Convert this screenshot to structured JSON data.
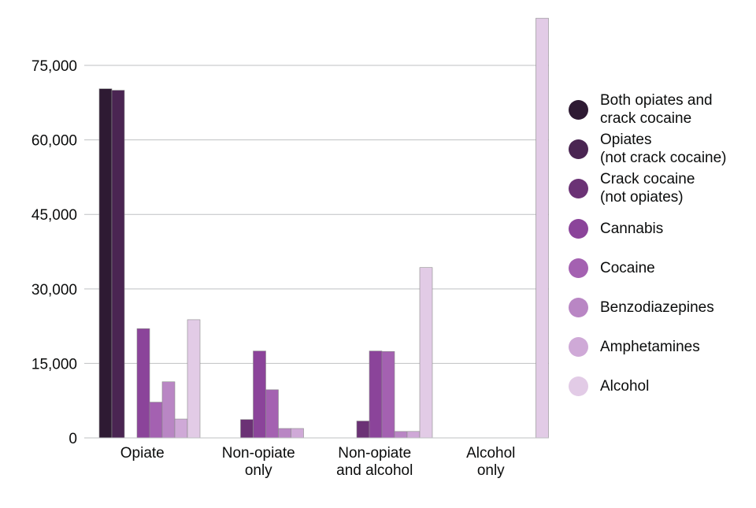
{
  "chart_data": {
    "type": "bar",
    "categories": [
      "Opiate",
      "Non-opiate\nonly",
      "Non-opiate\nand alcohol",
      "Alcohol\nonly"
    ],
    "ylim": [
      0,
      85000
    ],
    "yticks": [
      0,
      15000,
      30000,
      45000,
      60000,
      75000
    ],
    "ytick_labels": [
      "0",
      "15,000",
      "30,000",
      "45,000",
      "60,000",
      "75,000"
    ],
    "grid": true,
    "legend_position": "right",
    "series": [
      {
        "name": "Both opiates and\ncrack cocaine",
        "color": "#2e1a33",
        "values": [
          70300,
          0,
          0,
          0
        ]
      },
      {
        "name": "Opiates\n(not crack cocaine)",
        "color": "#4a2552",
        "values": [
          70000,
          0,
          0,
          0
        ]
      },
      {
        "name": "Crack cocaine\n(not opiates)",
        "color": "#6b3275",
        "values": [
          0,
          3700,
          3400,
          0
        ]
      },
      {
        "name": "Cannabis",
        "color": "#8b449a",
        "values": [
          22000,
          17500,
          17500,
          0
        ]
      },
      {
        "name": "Cocaine",
        "color": "#a461b1",
        "values": [
          7200,
          9700,
          17400,
          0
        ]
      },
      {
        "name": "Benzodiazepines",
        "color": "#b986c4",
        "values": [
          11300,
          1900,
          1300,
          0
        ]
      },
      {
        "name": "Amphetamines",
        "color": "#cfa9d7",
        "values": [
          3800,
          1900,
          1300,
          0
        ]
      },
      {
        "name": "Alcohol",
        "color": "#e2cbe6",
        "values": [
          23800,
          0,
          34300,
          84500
        ]
      }
    ]
  }
}
